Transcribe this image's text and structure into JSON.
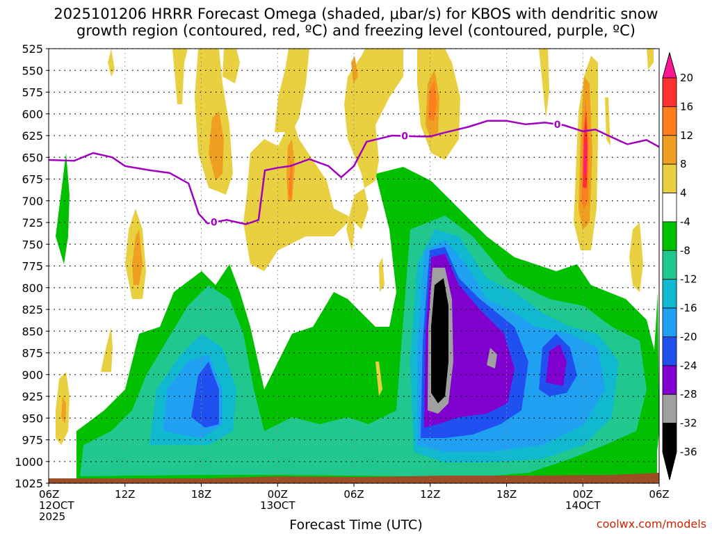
{
  "title_line1": "2025101206 HRRR Forecast Omega (shaded, μbar/s) for KBOS with dendritic snow",
  "title_line2": "growth region (contoured, red, ºC) and freezing level (contoured, purple, ºC)",
  "xlabel": "Forecast Time (UTC)",
  "credit": "coolwx.com/models",
  "chart_data": {
    "type": "heatmap",
    "y_levels_hPa": [
      525,
      550,
      575,
      600,
      625,
      650,
      675,
      700,
      725,
      750,
      775,
      800,
      825,
      850,
      875,
      900,
      925,
      950,
      975,
      1000,
      1025
    ],
    "x_ticks": [
      {
        "hour": 0,
        "line1": "06Z",
        "line2": "12OCT",
        "line3": "2025"
      },
      {
        "hour": 6,
        "line1": "12Z"
      },
      {
        "hour": 12,
        "line1": "18Z"
      },
      {
        "hour": 18,
        "line1": "00Z",
        "line2": "13OCT"
      },
      {
        "hour": 24,
        "line1": "06Z"
      },
      {
        "hour": 30,
        "line1": "12Z"
      },
      {
        "hour": 36,
        "line1": "18Z"
      },
      {
        "hour": 42,
        "line1": "00Z",
        "line2": "14OCT"
      },
      {
        "hour": 48,
        "line1": "06Z"
      }
    ],
    "colorbar": {
      "levels": [
        20,
        16,
        12,
        8,
        4,
        -4,
        -8,
        -12,
        -16,
        -20,
        -24,
        -28,
        -32,
        -36
      ],
      "colors": [
        "#ff1493",
        "#ff3030",
        "#ff7f1e",
        "#f0a020",
        "#e8d040",
        "#ffffff",
        "#00c000",
        "#20c890",
        "#10b8d0",
        "#20a0f0",
        "#2050f0",
        "#8000d0",
        "#a0a0a0",
        "#000000"
      ]
    },
    "freezing_level": {
      "label": "0",
      "color": "#a000c0",
      "points_hour_hPa": [
        [
          0,
          653
        ],
        [
          2,
          654
        ],
        [
          3.5,
          645
        ],
        [
          5,
          650
        ],
        [
          6,
          660
        ],
        [
          8,
          665
        ],
        [
          9.5,
          668
        ],
        [
          11,
          680
        ],
        [
          11.8,
          715
        ],
        [
          12.5,
          726
        ],
        [
          14,
          722
        ],
        [
          15.5,
          727
        ],
        [
          16.5,
          722
        ],
        [
          17,
          665
        ],
        [
          18,
          662
        ],
        [
          19,
          660
        ],
        [
          20.5,
          652
        ],
        [
          22,
          660
        ],
        [
          23,
          673
        ],
        [
          24,
          660
        ],
        [
          25,
          632
        ],
        [
          27,
          625
        ],
        [
          29,
          626
        ],
        [
          30,
          626
        ],
        [
          31,
          622
        ],
        [
          33,
          615
        ],
        [
          34.5,
          608
        ],
        [
          36,
          608
        ],
        [
          37.5,
          612
        ],
        [
          39,
          610
        ],
        [
          40.5,
          613
        ],
        [
          42,
          620
        ],
        [
          43,
          618
        ],
        [
          44,
          625
        ],
        [
          45.5,
          635
        ],
        [
          47,
          630
        ],
        [
          48,
          638
        ]
      ],
      "label_positions_hour": [
        13,
        28,
        40
      ]
    },
    "omega_features": [
      {
        "hour": 32,
        "hPa": 805,
        "min_value": -36
      },
      {
        "hour": 34.5,
        "hPa": 860,
        "min_value": -30
      },
      {
        "hour": 40.5,
        "hPa": 860,
        "min_value": -26
      },
      {
        "hour": 12.5,
        "hPa": 905,
        "min_value": -22
      },
      {
        "hour": 42.5,
        "hPa": 620,
        "max_value": 20
      },
      {
        "hour": 31,
        "hPa": 580,
        "max_value": 13
      },
      {
        "hour": 20,
        "hPa": 650,
        "max_value": 13
      },
      {
        "hour": 7,
        "hPa": 720,
        "max_value": 10
      }
    ]
  }
}
